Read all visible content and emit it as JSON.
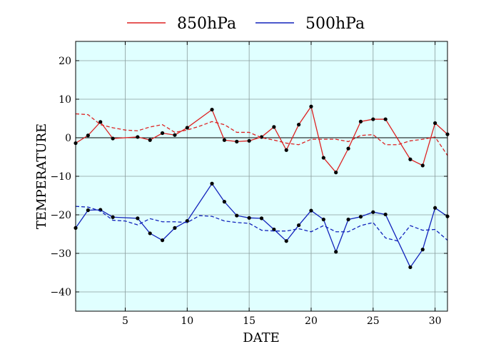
{
  "chart_data": {
    "type": "line",
    "title": "",
    "xlabel": "DATE",
    "ylabel": "TEMPERATURE",
    "xlim": [
      1,
      31
    ],
    "ylim": [
      -45,
      25
    ],
    "xticks": [
      5,
      10,
      15,
      20,
      25,
      30
    ],
    "yticks": [
      -40,
      -30,
      -20,
      -10,
      0,
      10,
      20
    ],
    "grid": true,
    "background": "#e0ffff",
    "legend_position": "top",
    "series": [
      {
        "name": "850hPa",
        "color": "#dd2222",
        "style": "solid",
        "markers": true,
        "x": [
          1,
          2,
          3,
          4,
          6,
          7,
          8,
          9,
          10,
          12,
          13,
          14,
          15,
          16,
          17,
          18,
          19,
          20,
          21,
          22,
          23,
          24,
          25,
          26,
          28,
          29,
          30,
          31
        ],
        "values": [
          -1.4,
          0.6,
          4.1,
          -0.2,
          0.2,
          -0.6,
          1.2,
          0.7,
          2.6,
          7.3,
          -0.6,
          -1.0,
          -0.8,
          0.2,
          2.8,
          -3.2,
          3.4,
          8.1,
          -5.2,
          -9.0,
          -2.8,
          4.2,
          4.8,
          4.8,
          -5.6,
          -7.2,
          3.8,
          0.9
        ]
      },
      {
        "name": "",
        "color": "#dd2222",
        "style": "dashed",
        "markers": false,
        "x": [
          1,
          2,
          3,
          4,
          5,
          6,
          7,
          8,
          9,
          10,
          11,
          12,
          13,
          14,
          15,
          16,
          17,
          18,
          19,
          20,
          21,
          22,
          23,
          24,
          25,
          26,
          27,
          28,
          29,
          30,
          31
        ],
        "values": [
          6.2,
          6.0,
          3.4,
          2.6,
          2.0,
          1.8,
          2.8,
          3.4,
          1.4,
          2.0,
          3.0,
          4.2,
          3.4,
          1.4,
          1.4,
          0.0,
          -0.6,
          -1.4,
          -1.8,
          -0.4,
          -0.4,
          -0.4,
          -1.0,
          0.6,
          0.8,
          -1.8,
          -1.8,
          -0.8,
          -0.4,
          0.2,
          -4.6
        ]
      },
      {
        "name": "500hPa",
        "color": "#1122bb",
        "style": "solid",
        "markers": true,
        "x": [
          1,
          2,
          3,
          4,
          6,
          7,
          8,
          9,
          10,
          12,
          13,
          14,
          15,
          16,
          17,
          18,
          19,
          20,
          21,
          22,
          23,
          24,
          25,
          26,
          28,
          29,
          30,
          31
        ],
        "values": [
          -23.4,
          -18.8,
          -18.7,
          -20.6,
          -20.9,
          -24.8,
          -26.6,
          -23.4,
          -21.6,
          -11.9,
          -16.6,
          -20.2,
          -20.8,
          -20.9,
          -23.8,
          -26.8,
          -22.7,
          -18.9,
          -21.2,
          -29.6,
          -21.2,
          -20.5,
          -19.3,
          -19.9,
          -33.6,
          -29.0,
          -18.2,
          -20.4
        ]
      },
      {
        "name": "",
        "color": "#1122bb",
        "style": "dashed",
        "markers": false,
        "x": [
          1,
          2,
          3,
          4,
          5,
          6,
          7,
          8,
          9,
          10,
          11,
          12,
          13,
          14,
          15,
          16,
          17,
          18,
          19,
          20,
          21,
          22,
          23,
          24,
          25,
          26,
          27,
          28,
          29,
          30,
          31
        ],
        "values": [
          -17.8,
          -18.0,
          -19.0,
          -21.4,
          -21.6,
          -22.6,
          -21.0,
          -21.8,
          -21.8,
          -22.0,
          -20.2,
          -20.4,
          -21.6,
          -22.0,
          -22.2,
          -24.0,
          -24.2,
          -24.2,
          -23.6,
          -24.4,
          -22.8,
          -24.4,
          -24.4,
          -22.8,
          -22.0,
          -26.0,
          -26.8,
          -22.8,
          -24.0,
          -23.8,
          -26.6
        ]
      }
    ]
  }
}
